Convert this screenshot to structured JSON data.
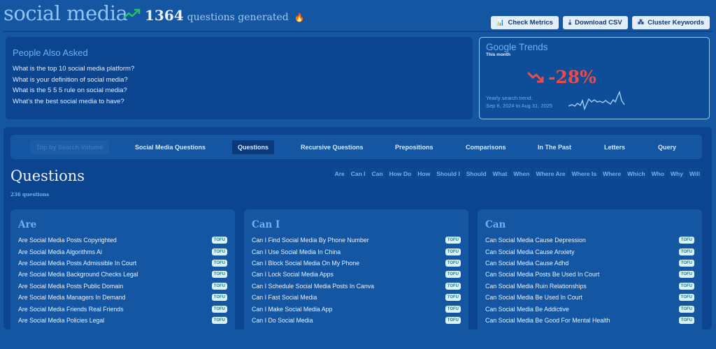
{
  "header": {
    "title": "social media",
    "count": "1364",
    "count_label": "questions generated",
    "trend_icon": "trending-up-icon",
    "fire_icon": "fire-icon"
  },
  "toolbar": {
    "check_metrics": "Check Metrics",
    "download_csv": "Download CSV",
    "cluster_keywords": "Cluster Keywords"
  },
  "paa": {
    "title": "People Also Asked",
    "questions": [
      "What is the top 10 social media platform?",
      "What is your definition of social media?",
      "What is the 5 5 5 rule on social media?",
      "What's the best social media to have?"
    ]
  },
  "trends": {
    "title": "Google Trends",
    "period": "This month",
    "change": "-28%",
    "yearly_label": "Yearly search trend:",
    "range": "Sep 8, 2024 to Aug 31, 2025",
    "colors": {
      "negative": "#ef4a4a"
    }
  },
  "nav": {
    "tabs": [
      "Top by Search Volume",
      "Social Media Questions",
      "Questions",
      "Recursive Questions",
      "Prepositions",
      "Comparisons",
      "In The Past",
      "Letters",
      "Query"
    ],
    "active": "Questions",
    "disabled": "Top by Search Volume"
  },
  "section": {
    "title": "Questions",
    "count": "236 questions",
    "filters": [
      "Are",
      "Can I",
      "Can",
      "How Do",
      "How",
      "Should I",
      "Should",
      "What",
      "When",
      "Where Are",
      "Where Is",
      "Where",
      "Which",
      "Who",
      "Why",
      "Will"
    ]
  },
  "cards": [
    {
      "title": "Are",
      "badge": "TOFU",
      "items": [
        "Are Social Media Posts Copyrighted",
        "Are Social Media Algorithms Ai",
        "Are Social Media Posts Admissible In Court",
        "Are Social Media Background Checks Legal",
        "Are Social Media Posts Public Domain",
        "Are Social Media Managers In Demand",
        "Are Social Media Friends Real Friends",
        "Are Social Media Policies Legal"
      ]
    },
    {
      "title": "Can I",
      "badge": "TOFU",
      "items": [
        "Can I Find Social Media By Phone Number",
        "Can I Use Social Media In China",
        "Can I Block Social Media On My Phone",
        "Can I Lock Social Media Apps",
        "Can I Schedule Social Media Posts In Canva",
        "Can I Fast Social Media",
        "Can I Make Social Media App",
        "Can I Do Social Media"
      ]
    },
    {
      "title": "Can",
      "badge": "TOFU",
      "items": [
        "Can Social Media Cause Depression",
        "Can Social Media Cause Anxiety",
        "Can Social Media Cause Adhd",
        "Can Social Media Posts Be Used In Court",
        "Can Social Media Ruin Relationships",
        "Can Social Media Be Used In Court",
        "Can Social Media Be Addictive",
        "Can Social Media Be Good For Mental Health"
      ]
    }
  ]
}
